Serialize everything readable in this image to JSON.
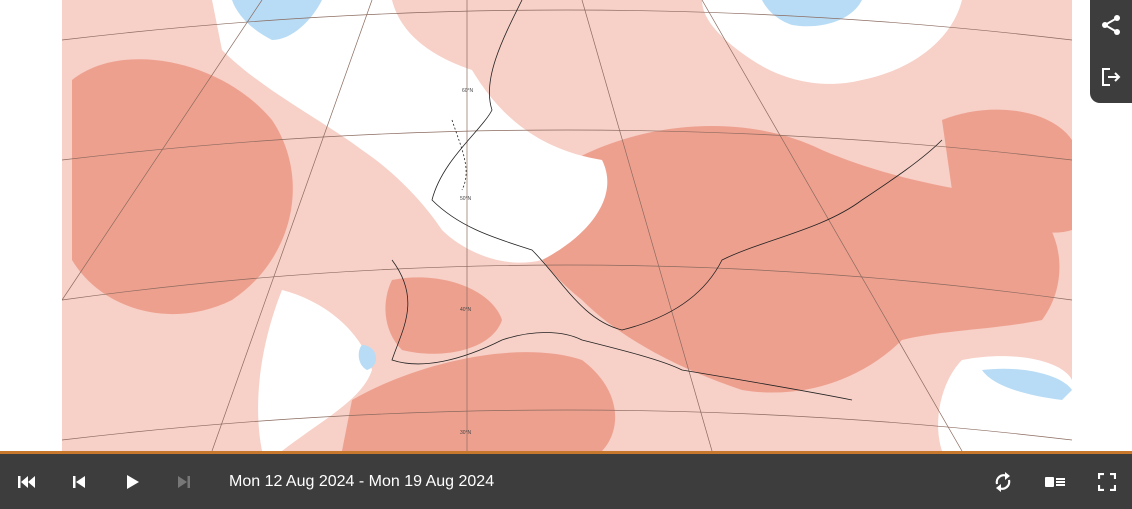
{
  "map": {
    "latitude_labels": [
      "60°N",
      "50°N",
      "40°N",
      "30°N"
    ]
  },
  "toolbar": {
    "date_range": "Mon 12 Aug 2024 - Mon 19 Aug 2024"
  }
}
